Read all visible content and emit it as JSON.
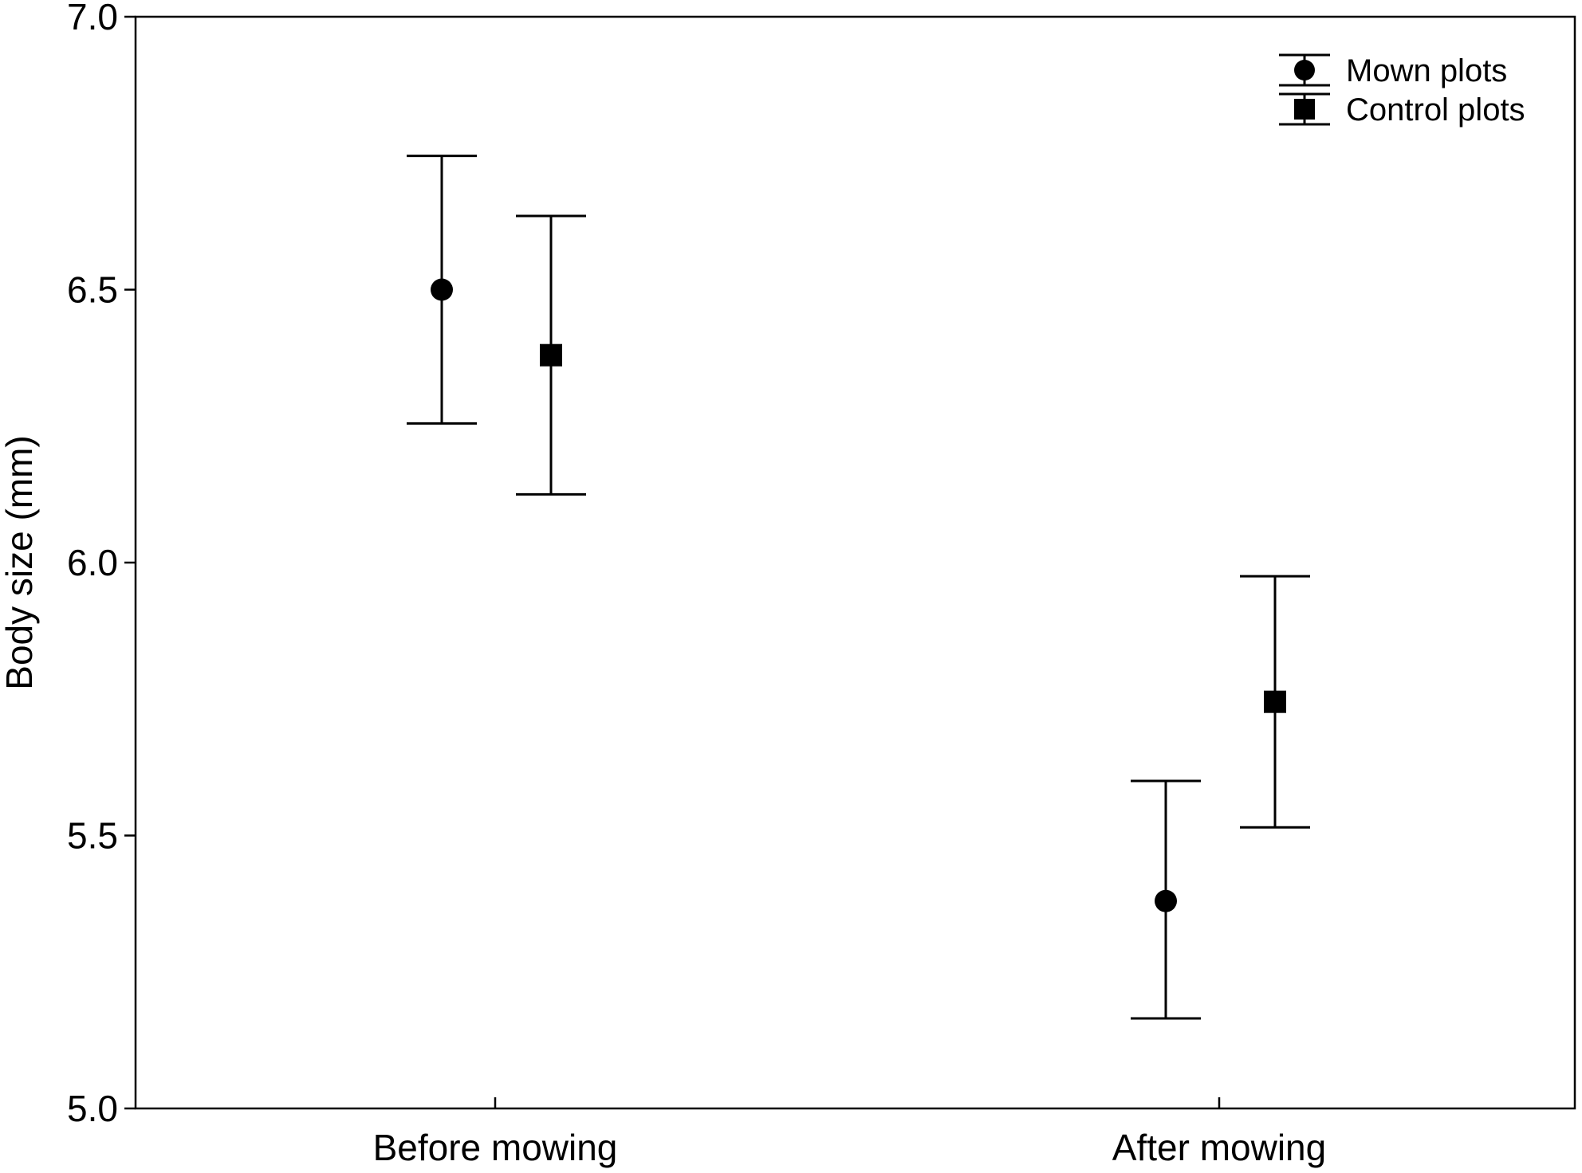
{
  "chart_data": {
    "type": "scatter",
    "title": "",
    "xlabel": "",
    "ylabel": "Body size (mm)",
    "categories": [
      "Before mowing",
      "After mowing"
    ],
    "ylim": [
      5.0,
      7.0
    ],
    "yticks": [
      "5.0",
      "5.5",
      "6.0",
      "6.5",
      "7.0"
    ],
    "grid": false,
    "legend_position": "top-right",
    "error_bars": true,
    "series": [
      {
        "name": "Mown plots",
        "marker": "circle",
        "values": [
          6.5,
          5.38
        ],
        "lower": [
          6.255,
          5.165
        ],
        "upper": [
          6.745,
          5.6
        ]
      },
      {
        "name": "Control plots",
        "marker": "square",
        "values": [
          6.38,
          5.745
        ],
        "lower": [
          6.125,
          5.515
        ],
        "upper": [
          6.635,
          5.975
        ]
      }
    ],
    "colors": {
      "marker": "#000000",
      "axis": "#000000",
      "background": "#ffffff"
    }
  }
}
